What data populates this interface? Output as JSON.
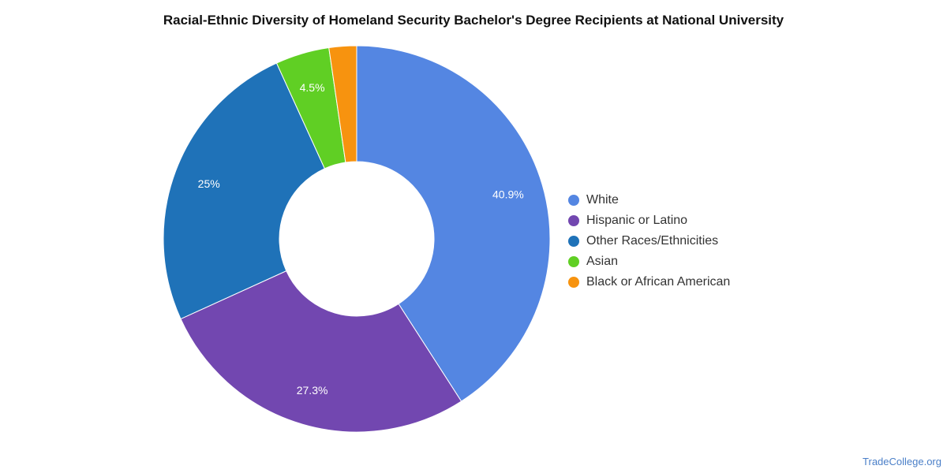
{
  "chart_data": {
    "type": "pie",
    "title": "Racial-Ethnic Diversity of Homeland Security Bachelor's Degree Recipients at National University",
    "legend_position": "right",
    "series": [
      {
        "name": "White",
        "value": 40.9,
        "label": "40.9%",
        "color": "#5486e2"
      },
      {
        "name": "Hispanic or Latino",
        "value": 27.3,
        "label": "27.3%",
        "color": "#7247b0"
      },
      {
        "name": "Other Races/Ethnicities",
        "value": 25,
        "label": "25%",
        "color": "#1f72b8"
      },
      {
        "name": "Asian",
        "value": 4.5,
        "label": "4.5%",
        "color": "#60cf24"
      },
      {
        "name": "Black or African American",
        "value": 2.3,
        "label": "",
        "color": "#f7930f"
      }
    ]
  },
  "credit": "TradeCollege.org"
}
